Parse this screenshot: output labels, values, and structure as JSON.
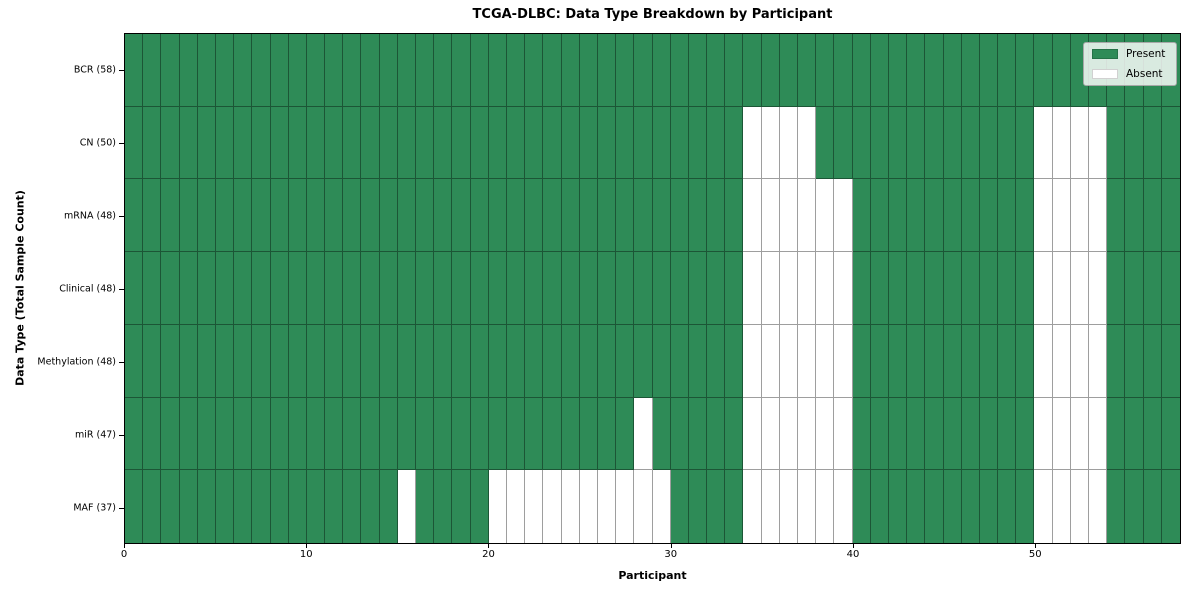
{
  "figure": {
    "title": "TCGA-DLBC: Data Type Breakdown by Participant",
    "xlabel": "Participant",
    "ylabel": "Data Type (Total Sample Count)"
  },
  "legend": {
    "items": [
      {
        "label": "Present",
        "color": "#2e8b57"
      },
      {
        "label": "Absent",
        "color": "#ffffff"
      }
    ]
  },
  "chart_data": {
    "type": "heatmap",
    "title": "TCGA-DLBC: Data Type Breakdown by Participant",
    "xlabel": "Participant",
    "ylabel": "Data Type (Total Sample Count)",
    "x_range": [
      0,
      58
    ],
    "x_ticks": [
      0,
      10,
      20,
      30,
      40,
      50
    ],
    "n_participants": 58,
    "legend_position": "upper right",
    "grid": true,
    "colors": {
      "present": "#2e8b57",
      "absent": "#ffffff",
      "cell_border": "rgba(0,0,0,0.38)"
    },
    "rows": [
      {
        "label": "BCR (58)",
        "data_type": "BCR",
        "total": 58,
        "absent_participants": []
      },
      {
        "label": "CN (50)",
        "data_type": "CN",
        "total": 50,
        "absent_participants": [
          34,
          35,
          36,
          37,
          50,
          51,
          52,
          53
        ]
      },
      {
        "label": "mRNA (48)",
        "data_type": "mRNA",
        "total": 48,
        "absent_participants": [
          34,
          35,
          36,
          37,
          38,
          39,
          50,
          51,
          52,
          53
        ]
      },
      {
        "label": "Clinical (48)",
        "data_type": "Clinical",
        "total": 48,
        "absent_participants": [
          34,
          35,
          36,
          37,
          38,
          39,
          50,
          51,
          52,
          53
        ]
      },
      {
        "label": "Methylation (48)",
        "data_type": "Methylation",
        "total": 48,
        "absent_participants": [
          34,
          35,
          36,
          37,
          38,
          39,
          50,
          51,
          52,
          53
        ]
      },
      {
        "label": "miR (47)",
        "data_type": "miR",
        "total": 47,
        "absent_participants": [
          28,
          34,
          35,
          36,
          37,
          38,
          39,
          50,
          51,
          52,
          53
        ]
      },
      {
        "label": "MAF (37)",
        "data_type": "MAF",
        "total": 37,
        "absent_participants": [
          15,
          20,
          21,
          22,
          23,
          24,
          25,
          26,
          27,
          28,
          29,
          34,
          35,
          36,
          37,
          38,
          39,
          50,
          51,
          52,
          53
        ]
      }
    ]
  }
}
